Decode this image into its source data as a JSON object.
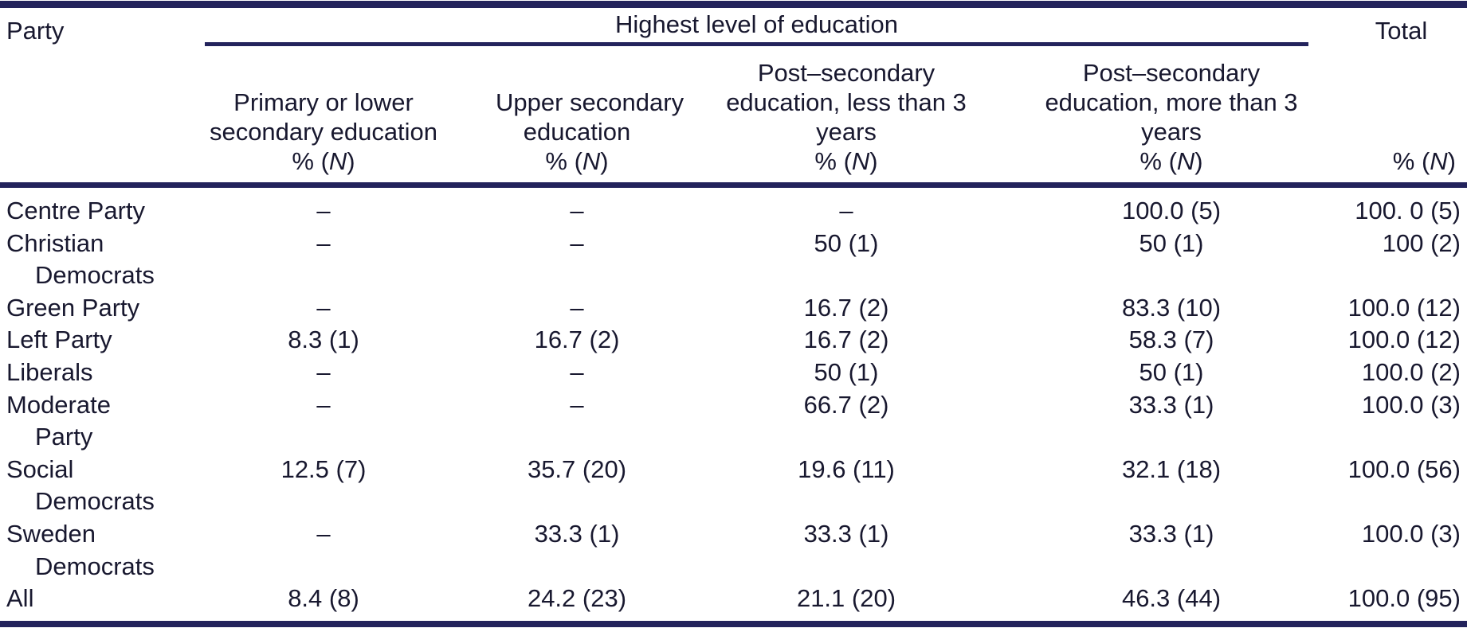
{
  "table": {
    "party_header": "Party",
    "spanner": "Highest level of education",
    "total_header": "Total",
    "percent_n": {
      "prefix": "% (",
      "n": "N",
      "suffix": ")"
    },
    "columns": [
      {
        "lines": [
          "Primary or lower",
          "secondary education"
        ]
      },
      {
        "lines": [
          "Upper secondary",
          "education"
        ]
      },
      {
        "lines": [
          "Post–secondary",
          "education, less than 3",
          "years"
        ]
      },
      {
        "lines": [
          "Post–secondary",
          "education, more than 3",
          "years"
        ]
      }
    ],
    "rows": [
      {
        "party": "Centre Party",
        "cells": [
          "–",
          "–",
          "–",
          "100.0 (5)",
          "100. 0 (5)"
        ]
      },
      {
        "party": "Christian\nDemocrats",
        "cells": [
          "–",
          "–",
          "50 (1)",
          "50 (1)",
          "100 (2)"
        ]
      },
      {
        "party": "Green Party",
        "cells": [
          "–",
          "–",
          "16.7 (2)",
          "83.3 (10)",
          "100.0 (12)"
        ]
      },
      {
        "party": "Left Party",
        "cells": [
          "8.3 (1)",
          "16.7 (2)",
          "16.7 (2)",
          "58.3 (7)",
          "100.0 (12)"
        ]
      },
      {
        "party": "Liberals",
        "cells": [
          "–",
          "–",
          "50 (1)",
          "50 (1)",
          "100.0 (2)"
        ]
      },
      {
        "party": "Moderate\nParty",
        "cells": [
          "–",
          "–",
          "66.7 (2)",
          "33.3 (1)",
          "100.0 (3)"
        ]
      },
      {
        "party": "Social\nDemocrats",
        "cells": [
          "12.5 (7)",
          "35.7 (20)",
          "19.6 (11)",
          "32.1 (18)",
          "100.0 (56)"
        ]
      },
      {
        "party": "Sweden\nDemocrats",
        "cells": [
          "–",
          "33.3 (1)",
          "33.3 (1)",
          "33.3 (1)",
          "100.0 (3)"
        ]
      },
      {
        "party": "All",
        "cells": [
          "8.4 (8)",
          "24.2 (23)",
          "21.1 (20)",
          "46.3 (44)",
          "100.0 (95)"
        ]
      }
    ]
  },
  "colors": {
    "rule": "#23235c",
    "text": "#18182f",
    "background": "#ffffff"
  }
}
